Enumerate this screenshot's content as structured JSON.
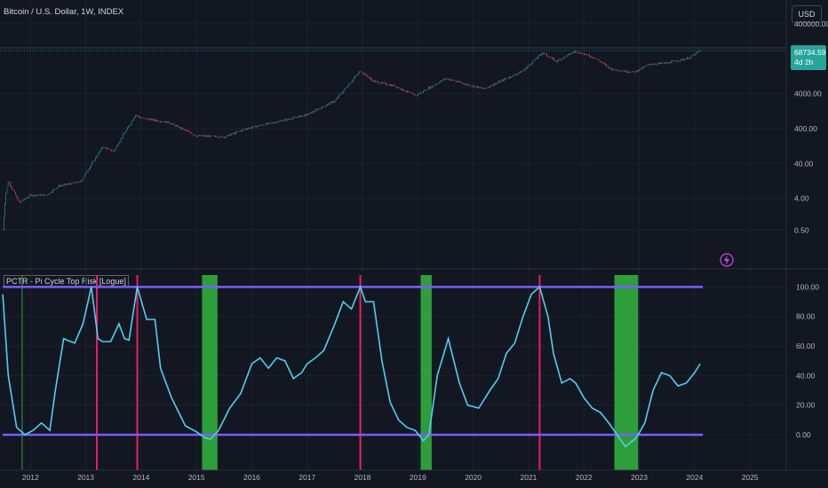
{
  "header": {
    "title": "Bitcoin / U.S. Dollar, 1W, INDEX",
    "currency_button": "USD"
  },
  "price_tag": {
    "value": "68734.59",
    "countdown": "4d 2h"
  },
  "colors": {
    "background": "#131722",
    "candle_up": "#26a69a",
    "candle_down": "#ef5350",
    "indicator_line": "#4dd0f0",
    "bound_line": "#7c5cff",
    "top_signal": "#e91e63",
    "bottom_zone": "#2e9e3a"
  },
  "chart_data": [
    {
      "type": "line",
      "title": "Bitcoin / U.S. Dollar, 1W, INDEX",
      "subtype": "candlestick",
      "yscale": "log",
      "ylim": [
        0.3,
        800000
      ],
      "y_ticks": [
        "400000.00",
        "4000.00",
        "400.00",
        "40.00",
        "4.00",
        "0.50"
      ],
      "y_tick_values": [
        400000,
        4000,
        400,
        40,
        4,
        0.5
      ],
      "x": [
        2011.5,
        2011.55,
        2011.6,
        2011.8,
        2012.0,
        2012.3,
        2012.5,
        2012.9,
        2013.15,
        2013.3,
        2013.5,
        2013.9,
        2014.0,
        2014.5,
        2015.0,
        2015.5,
        2015.9,
        2016.5,
        2017.0,
        2017.5,
        2017.96,
        2018.2,
        2018.6,
        2018.96,
        2019.5,
        2019.9,
        2020.2,
        2020.5,
        2020.9,
        2021.25,
        2021.5,
        2021.85,
        2022.2,
        2022.5,
        2022.9,
        2023.2,
        2023.5,
        2023.9,
        2024.1
      ],
      "close": [
        0.5,
        5,
        13,
        3,
        5,
        5,
        9,
        12,
        50,
        120,
        90,
        1000,
        800,
        600,
        250,
        230,
        400,
        650,
        1000,
        2500,
        18000,
        9000,
        6500,
        3500,
        11000,
        7200,
        5500,
        9200,
        18000,
        60000,
        34000,
        66000,
        42000,
        20000,
        16500,
        28000,
        30000,
        42000,
        68734.59
      ]
    },
    {
      "type": "line",
      "title": "PCTR - Pi Cycle Top Risk [Logue]",
      "ylim": [
        -12,
        108
      ],
      "y_ticks": [
        "100.00",
        "80.00",
        "60.00",
        "40.00",
        "20.00",
        "0.00"
      ],
      "y_tick_values": [
        100,
        80,
        60,
        40,
        20,
        0
      ],
      "x_ticks": [
        "2012",
        "2013",
        "2014",
        "2015",
        "2016",
        "2017",
        "2018",
        "2019",
        "2020",
        "2021",
        "2022",
        "2023",
        "2024",
        "2025"
      ],
      "upper_band": 100,
      "lower_band": 0,
      "top_signals": [
        2013.2,
        2013.93,
        2017.96,
        2021.2
      ],
      "bottom_zones": [
        [
          2015.1,
          2015.38
        ],
        [
          2019.05,
          2019.25
        ],
        [
          2022.55,
          2022.98
        ]
      ],
      "bottom_marker": 2011.85,
      "series": [
        {
          "x": [
            2011.5,
            2011.6,
            2011.75,
            2011.9,
            2012.05,
            2012.2,
            2012.35,
            2012.45,
            2012.6,
            2012.8,
            2012.95,
            2013.1,
            2013.22,
            2013.3,
            2013.45,
            2013.6,
            2013.7,
            2013.78,
            2013.93,
            2014.1,
            2014.25,
            2014.35,
            2014.55,
            2014.8,
            2015.0,
            2015.15,
            2015.25,
            2015.4,
            2015.6,
            2015.8,
            2016.0,
            2016.15,
            2016.3,
            2016.45,
            2016.6,
            2016.75,
            2016.9,
            2017.0,
            2017.15,
            2017.3,
            2017.5,
            2017.65,
            2017.8,
            2017.96,
            2018.05,
            2018.2,
            2018.35,
            2018.5,
            2018.65,
            2018.8,
            2018.95,
            2019.1,
            2019.2,
            2019.35,
            2019.55,
            2019.75,
            2019.9,
            2020.1,
            2020.3,
            2020.45,
            2020.6,
            2020.75,
            2020.9,
            2021.05,
            2021.2,
            2021.35,
            2021.45,
            2021.6,
            2021.75,
            2021.85,
            2022.0,
            2022.15,
            2022.3,
            2022.45,
            2022.6,
            2022.75,
            2022.85,
            2022.95,
            2023.1,
            2023.25,
            2023.4,
            2023.55,
            2023.7,
            2023.85,
            2024.0,
            2024.1
          ],
          "values": [
            95,
            40,
            5,
            0,
            3,
            8,
            3,
            30,
            65,
            62,
            75,
            100,
            65,
            63,
            63,
            75,
            65,
            64,
            100,
            78,
            78,
            45,
            25,
            6,
            2,
            -2,
            -3,
            3,
            18,
            28,
            48,
            52,
            45,
            52,
            50,
            38,
            42,
            48,
            52,
            57,
            75,
            90,
            85,
            100,
            90,
            90,
            50,
            22,
            10,
            5,
            3,
            -4,
            0,
            40,
            65,
            35,
            20,
            18,
            30,
            38,
            55,
            62,
            80,
            95,
            100,
            80,
            55,
            35,
            38,
            35,
            25,
            18,
            15,
            8,
            0,
            -8,
            -5,
            -2,
            8,
            30,
            42,
            40,
            33,
            35,
            42,
            48
          ]
        }
      ]
    }
  ]
}
